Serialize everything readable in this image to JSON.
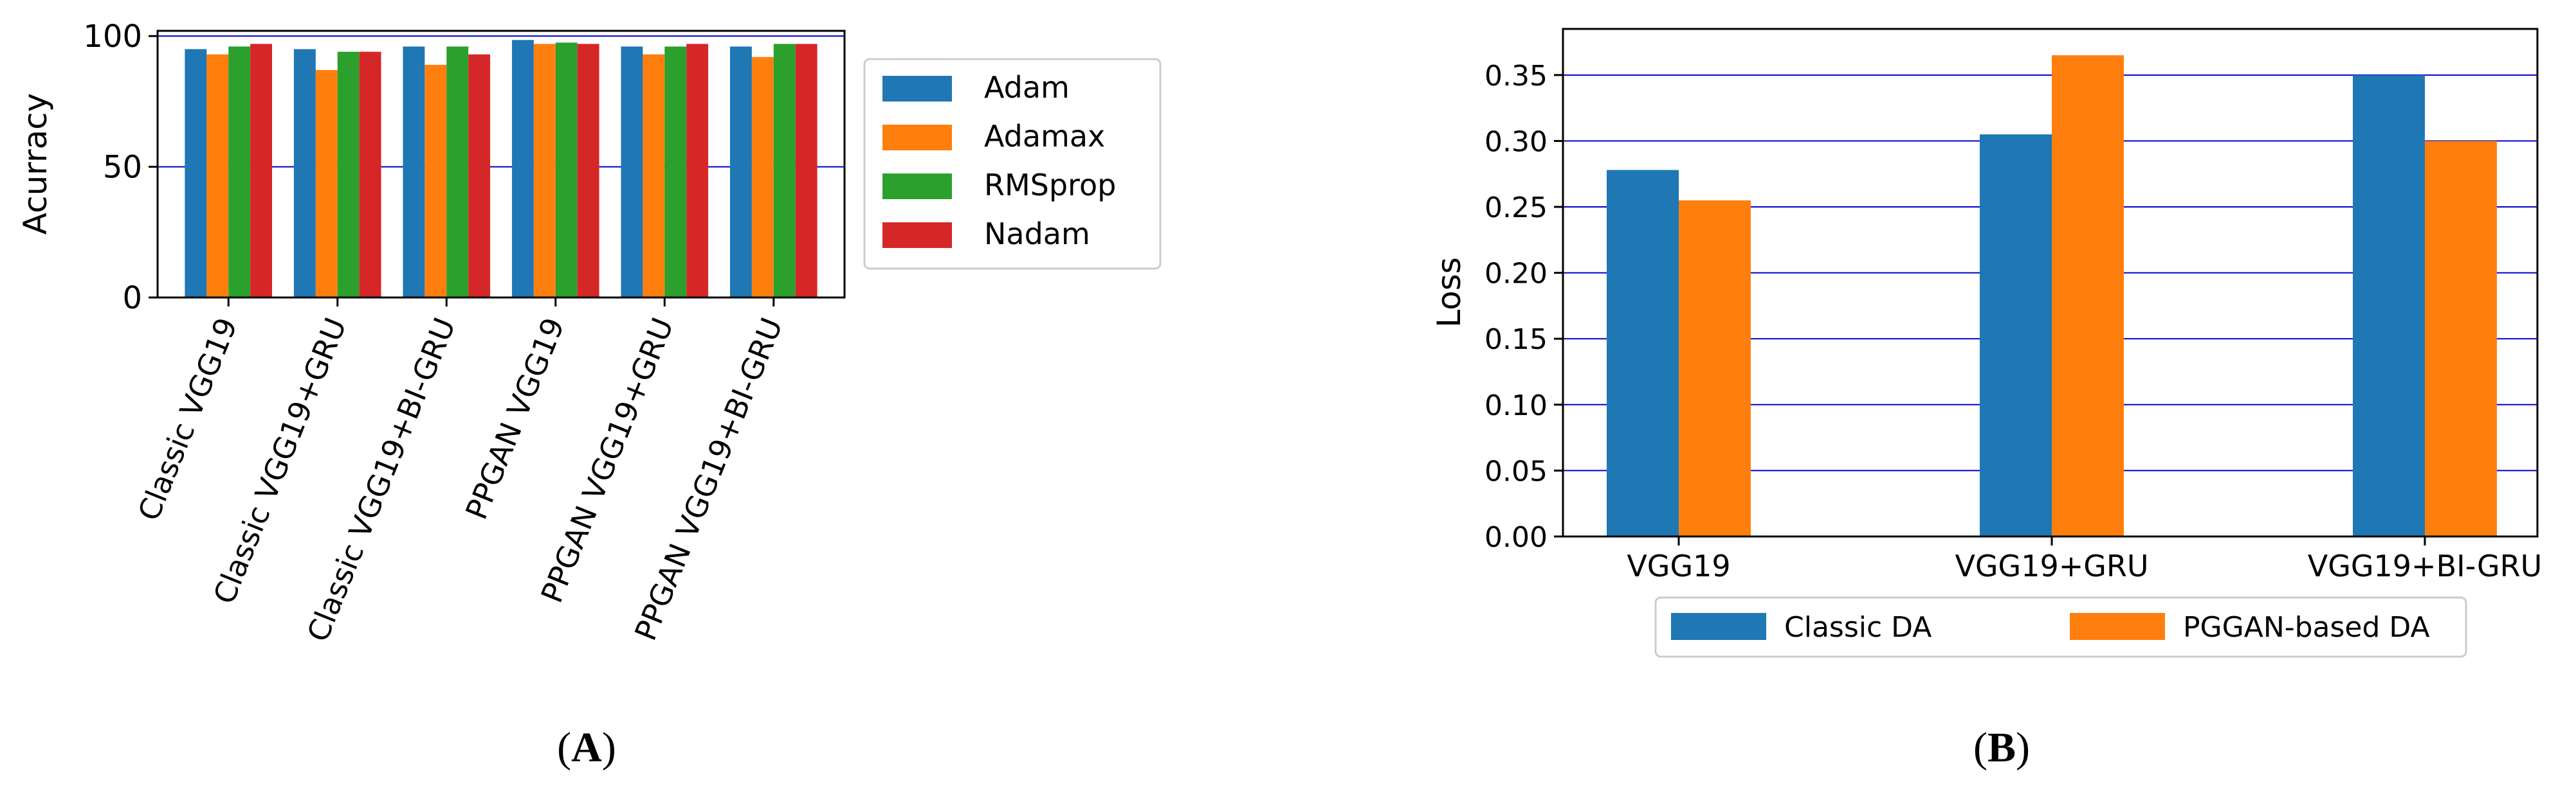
{
  "colors": {
    "blue": "#1f77b4",
    "orange": "#ff7f0e",
    "green": "#2ca02c",
    "red": "#d62728",
    "gridline": "#0000cc"
  },
  "panel_labels": {
    "a": "A",
    "b": "B"
  },
  "chart_data": [
    {
      "id": "A",
      "type": "bar",
      "title": "",
      "xlabel": "",
      "ylabel": "Acurracy",
      "ylim": [
        0,
        102
      ],
      "yticks": [
        0,
        50,
        100
      ],
      "grid": "horizontal lines at 50 and 100",
      "legend_position": "right",
      "categories": [
        "Classic VGG19",
        "Classic VGG19+GRU",
        "Classic VGG19+BI-GRU",
        "PPGAN VGG19",
        "PPGAN VGG19+GRU",
        "PPGAN VGG19+BI-GRU"
      ],
      "series": [
        {
          "name": "Adam",
          "color": "#1f77b4",
          "values": [
            95,
            95,
            96,
            98.5,
            96,
            96
          ]
        },
        {
          "name": "Adamax",
          "color": "#ff7f0e",
          "values": [
            93,
            87,
            89,
            97,
            93,
            92
          ]
        },
        {
          "name": "RMSprop",
          "color": "#2ca02c",
          "values": [
            96,
            94,
            96,
            97.5,
            96,
            97
          ]
        },
        {
          "name": "Nadam",
          "color": "#d62728",
          "values": [
            97,
            94,
            93,
            97,
            97,
            97
          ]
        }
      ]
    },
    {
      "id": "B",
      "type": "bar",
      "title": "",
      "xlabel": "",
      "ylabel": "Loss",
      "ylim": [
        0,
        0.385
      ],
      "yticks": [
        "0.00",
        "0.05",
        "0.10",
        "0.15",
        "0.20",
        "0.25",
        "0.30",
        "0.35"
      ],
      "grid": "horizontal lines at every tick",
      "legend_position": "bottom",
      "categories": [
        "VGG19",
        "VGG19+GRU",
        "VGG19+BI-GRU"
      ],
      "series": [
        {
          "name": "Classic DA",
          "color": "#1f77b4",
          "values": [
            0.278,
            0.305,
            0.35
          ]
        },
        {
          "name": "PGGAN-based DA",
          "color": "#ff7f0e",
          "values": [
            0.255,
            0.365,
            0.3
          ]
        }
      ]
    }
  ]
}
